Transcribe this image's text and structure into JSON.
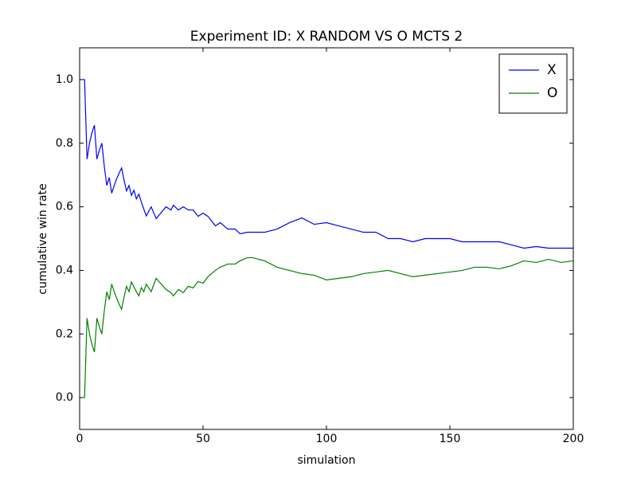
{
  "chart_data": {
    "type": "line",
    "title": "Experiment ID: X RANDOM VS O MCTS 2",
    "x_label": "simulation",
    "y_label": "cumulative win rate",
    "x": [
      1,
      2,
      3,
      4,
      5,
      6,
      7,
      8,
      9,
      10,
      11,
      12,
      13,
      14,
      15,
      16,
      17,
      18,
      19,
      20,
      21,
      22,
      23,
      24,
      25,
      26,
      27,
      28,
      29,
      30,
      31,
      35,
      37,
      38,
      40,
      42,
      44,
      46,
      48,
      50,
      52,
      55,
      57,
      60,
      63,
      65,
      68,
      70,
      75,
      80,
      85,
      90,
      95,
      100,
      105,
      110,
      115,
      120,
      125,
      130,
      135,
      140,
      145,
      150,
      155,
      160,
      165,
      170,
      175,
      180,
      185,
      190,
      195,
      200
    ],
    "series": [
      {
        "name": "X",
        "color": "#0000ff",
        "values": [
          1.0,
          1.0,
          0.75,
          0.8,
          0.833,
          0.857,
          0.75,
          0.778,
          0.8,
          0.727,
          0.667,
          0.692,
          0.643,
          0.667,
          0.688,
          0.706,
          0.722,
          0.684,
          0.65,
          0.667,
          0.636,
          0.652,
          0.625,
          0.64,
          0.615,
          0.593,
          0.571,
          0.586,
          0.6,
          0.581,
          0.563,
          0.6,
          0.59,
          0.605,
          0.59,
          0.6,
          0.59,
          0.59,
          0.57,
          0.58,
          0.57,
          0.54,
          0.55,
          0.53,
          0.53,
          0.515,
          0.52,
          0.52,
          0.52,
          0.53,
          0.55,
          0.565,
          0.545,
          0.55,
          0.54,
          0.53,
          0.52,
          0.52,
          0.5,
          0.5,
          0.49,
          0.5,
          0.5,
          0.5,
          0.49,
          0.49,
          0.49,
          0.49,
          0.48,
          0.47,
          0.475,
          0.47,
          0.47,
          0.47
        ]
      },
      {
        "name": "O",
        "color": "#008000",
        "values": [
          0,
          0,
          0.25,
          0.2,
          0.167,
          0.143,
          0.25,
          0.222,
          0.2,
          0.273,
          0.333,
          0.308,
          0.357,
          0.333,
          0.313,
          0.294,
          0.278,
          0.316,
          0.35,
          0.333,
          0.364,
          0.348,
          0.333,
          0.32,
          0.346,
          0.333,
          0.357,
          0.345,
          0.333,
          0.355,
          0.375,
          0.34,
          0.33,
          0.32,
          0.34,
          0.33,
          0.35,
          0.345,
          0.365,
          0.36,
          0.38,
          0.4,
          0.41,
          0.42,
          0.42,
          0.43,
          0.44,
          0.44,
          0.43,
          0.41,
          0.4,
          0.39,
          0.385,
          0.37,
          0.375,
          0.38,
          0.39,
          0.395,
          0.4,
          0.39,
          0.38,
          0.385,
          0.39,
          0.395,
          0.4,
          0.41,
          0.41,
          0.405,
          0.415,
          0.43,
          0.425,
          0.435,
          0.425,
          0.43
        ]
      }
    ],
    "xlim": [
      0,
      200
    ],
    "xticks": [
      0,
      50,
      100,
      150,
      200
    ],
    "ylim": [
      -0.1,
      1.1
    ],
    "yticks": [
      {
        "value": 0,
        "label": "0.0"
      },
      0.2,
      0.4,
      0.6,
      0.8,
      {
        "value": 1,
        "label": "1.0"
      }
    ],
    "grid": false,
    "legend": "upper right"
  }
}
